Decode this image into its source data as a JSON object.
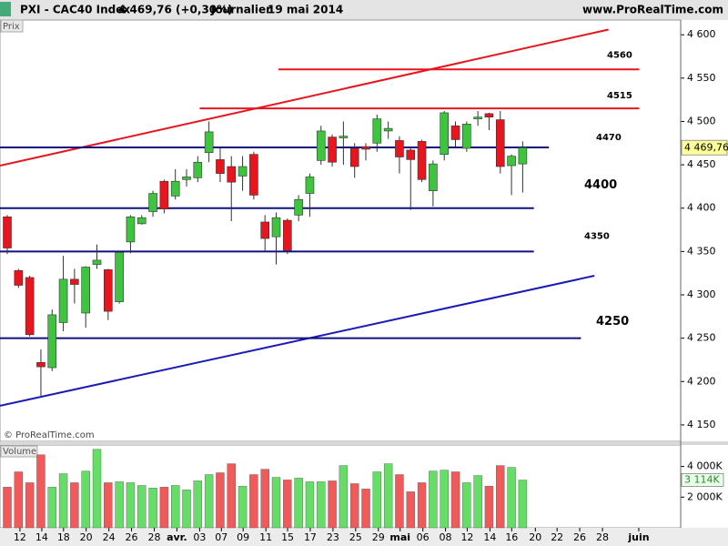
{
  "header": {
    "instrument": "PXI - CAC40 Index",
    "quote": "4 469,76 (+0,30%)",
    "period": "Journalier",
    "date": "19 mai 2014",
    "site": "www.ProRealTime.com"
  },
  "chart_data": [
    {
      "type": "candlestick",
      "label": "Prix",
      "watermark": "© ProRealTime.com",
      "up_color": "#3ec43e",
      "down_color": "#e8141e",
      "open": [
        4390,
        4328,
        4320,
        4222,
        4216,
        4268,
        4318,
        4279,
        4335,
        4329,
        4292,
        4361,
        4382,
        4396,
        4431,
        4414,
        4433,
        4435,
        4464,
        4456,
        4448,
        4437,
        4462,
        4384,
        4367,
        4386,
        4392,
        4417,
        4455,
        4482,
        4481,
        4469,
        4471,
        4475,
        4489,
        4478,
        4467,
        4477,
        4420,
        4462,
        4495,
        4469,
        4503,
        4509,
        4502,
        4449,
        4451
      ],
      "high": [
        4392,
        4330,
        4322,
        4237,
        4283,
        4345,
        4330,
        4333,
        4358,
        4330,
        4350,
        4392,
        4392,
        4420,
        4433,
        4445,
        4445,
        4460,
        4500,
        4470,
        4460,
        4460,
        4465,
        4392,
        4395,
        4388,
        4415,
        4440,
        4495,
        4485,
        4500,
        4475,
        4475,
        4508,
        4500,
        4483,
        4470,
        4479,
        4455,
        4512,
        4500,
        4500,
        4512,
        4510,
        4512,
        4462,
        4477
      ],
      "low": [
        4347,
        4308,
        4252,
        4182,
        4212,
        4258,
        4290,
        4262,
        4330,
        4271,
        4290,
        4348,
        4381,
        4390,
        4394,
        4410,
        4425,
        4430,
        4453,
        4430,
        4385,
        4420,
        4410,
        4350,
        4335,
        4347,
        4385,
        4390,
        4450,
        4448,
        4450,
        4435,
        4455,
        4465,
        4480,
        4440,
        4398,
        4430,
        4402,
        4455,
        4470,
        4465,
        4495,
        4490,
        4440,
        4415,
        4418
      ],
      "close": [
        4354,
        4311,
        4254,
        4217,
        4277,
        4318,
        4312,
        4332,
        4340,
        4281,
        4349,
        4390,
        4389,
        4417,
        4399,
        4431,
        4436,
        4453,
        4488,
        4440,
        4430,
        4448,
        4415,
        4365,
        4389,
        4351,
        4410,
        4436,
        4489,
        4453,
        4483,
        4448,
        4468,
        4503,
        4492,
        4459,
        4456,
        4433,
        4451,
        4510,
        4479,
        4497,
        4505,
        4505,
        4448,
        4460,
        4469.76
      ],
      "ylim": [
        4131,
        4617
      ],
      "yticks": [
        {
          "value": 4600,
          "label": "4 600"
        },
        {
          "value": 4550,
          "label": "4 550"
        },
        {
          "value": 4500,
          "label": "4 500"
        },
        {
          "value": 4450,
          "label": "4 450"
        },
        {
          "value": 4400,
          "label": "4 400"
        },
        {
          "value": 4350,
          "label": "4 350"
        },
        {
          "value": 4300,
          "label": "4 300"
        },
        {
          "value": 4250,
          "label": "4 250"
        },
        {
          "value": 4200,
          "label": "4 200"
        },
        {
          "value": 4150,
          "label": "4 150"
        }
      ],
      "last_price": {
        "value": 4469.76,
        "label": "4 469,76"
      },
      "xlim": [
        -0.65,
        60.1
      ],
      "xticks": [
        {
          "value": 1.13,
          "label": "12"
        },
        {
          "value": 3.08,
          "label": "14"
        },
        {
          "value": 5.02,
          "label": "18"
        },
        {
          "value": 7.04,
          "label": "20"
        },
        {
          "value": 9.07,
          "label": "24"
        },
        {
          "value": 11.09,
          "label": "26"
        },
        {
          "value": 13.12,
          "label": "28"
        },
        {
          "value": 15.14,
          "label": "avr."
        },
        {
          "value": 17.17,
          "label": "03"
        },
        {
          "value": 19.11,
          "label": "07"
        },
        {
          "value": 21.05,
          "label": "09"
        },
        {
          "value": 23.08,
          "label": "11"
        },
        {
          "value": 25.02,
          "label": "15"
        },
        {
          "value": 27.04,
          "label": "17"
        },
        {
          "value": 29.07,
          "label": "23"
        },
        {
          "value": 31.09,
          "label": "25"
        },
        {
          "value": 33.12,
          "label": "29"
        },
        {
          "value": 35.06,
          "label": "mai"
        },
        {
          "value": 37.09,
          "label": "06"
        },
        {
          "value": 39.11,
          "label": "08"
        },
        {
          "value": 41.05,
          "label": "12"
        },
        {
          "value": 43.08,
          "label": "14"
        },
        {
          "value": 45.02,
          "label": "16"
        },
        {
          "value": 47.13,
          "label": "20"
        },
        {
          "value": 49.07,
          "label": "22"
        },
        {
          "value": 51.09,
          "label": "26"
        },
        {
          "value": 53.12,
          "label": "28"
        },
        {
          "value": 56.36,
          "label": "juin"
        }
      ],
      "levels": [
        {
          "value": 4560,
          "color": "#e8141e",
          "x": [
            24.2,
            56.4
          ]
        },
        {
          "value": 4515,
          "color": "#e8141e",
          "x": [
            17.17,
            56.4
          ]
        },
        {
          "value": 4470,
          "color": "#101080",
          "x": [
            -0.65,
            48.34
          ]
        },
        {
          "value": 4400,
          "color": "#101080",
          "x": [
            -0.65,
            47.0
          ]
        },
        {
          "value": 4350,
          "color": "#101080",
          "x": [
            -0.65,
            47.0
          ]
        },
        {
          "value": 4250,
          "color": "#101080",
          "x": [
            -0.65,
            51.2
          ]
        }
      ],
      "trendlines": [
        {
          "color": "#e8141e",
          "x": [
            -0.65,
            53.65
          ],
          "y": [
            4449,
            4606
          ]
        },
        {
          "color": "#1a1ab8",
          "x": [
            -0.65,
            52.4
          ],
          "y": [
            4172,
            4322
          ]
        }
      ]
    },
    {
      "type": "bar",
      "label": "Volume",
      "values": [
        2650,
        3650,
        2940,
        4760,
        2650,
        3530,
        2940,
        3700,
        5120,
        2940,
        3000,
        2940,
        2760,
        2590,
        2650,
        2760,
        2470,
        3060,
        3470,
        3590,
        4180,
        2710,
        3470,
        3820,
        3290,
        3120,
        3240,
        3000,
        3000,
        3060,
        4060,
        2880,
        2530,
        3650,
        4180,
        3470,
        2350,
        2940,
        3700,
        3760,
        3650,
        2940,
        3410,
        2710,
        4060,
        3940,
        3114
      ],
      "ylim": [
        0,
        5400
      ],
      "yticks": [
        {
          "value": 4000,
          "label": "4 000K"
        },
        {
          "value": 2000,
          "label": "2 000K"
        }
      ],
      "last_value": {
        "value": 3114,
        "label": "3 114K"
      }
    }
  ]
}
